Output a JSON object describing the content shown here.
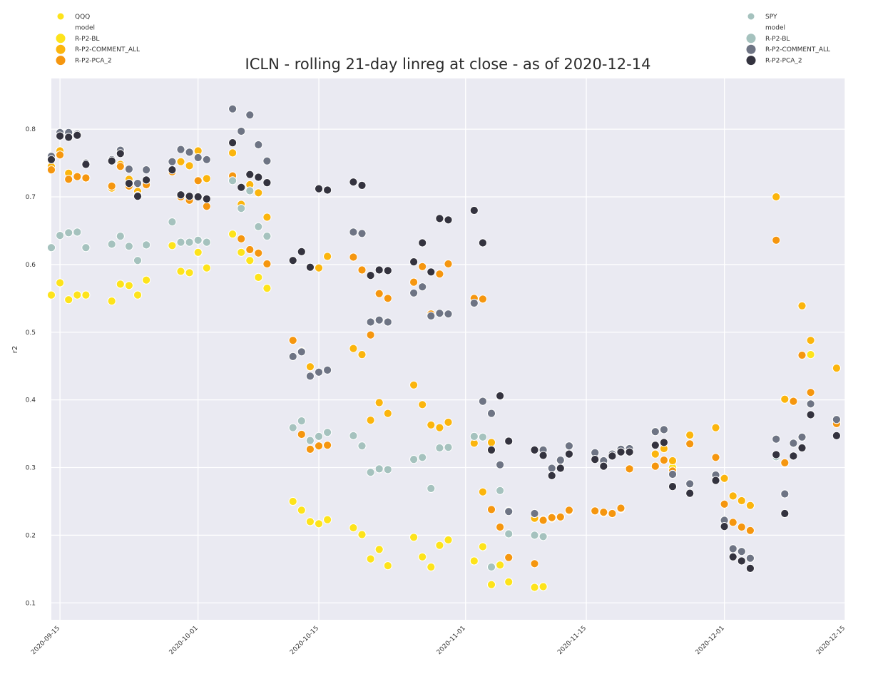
{
  "chart_data": {
    "type": "scatter",
    "title": "ICLN - rolling 21-day linreg at close - as of 2020-12-14",
    "xlabel": "",
    "ylabel": "r2",
    "x_range": [
      "2020-09-14",
      "2020-12-15"
    ],
    "ylim": [
      0.075,
      0.875
    ],
    "x_ticks": [
      "2020-09-15",
      "2020-10-01",
      "2020-10-15",
      "2020-11-01",
      "2020-11-15",
      "2020-12-01",
      "2020-12-15"
    ],
    "y_ticks": [
      0.1,
      0.2,
      0.3,
      0.4,
      0.5,
      0.6,
      0.7,
      0.8
    ],
    "grid": true,
    "legends": [
      {
        "placement": "top-left",
        "hue_title": "QQQ",
        "style_title": "model",
        "entries": [
          "R-P2-BL",
          "R-P2-COMMENT_ALL",
          "R-P2-PCA_2"
        ]
      },
      {
        "placement": "top-right",
        "hue_title": "SPY",
        "style_title": "model",
        "entries": [
          "R-P2-BL",
          "R-P2-COMMENT_ALL",
          "R-P2-PCA_2"
        ]
      }
    ],
    "colors": {
      "QQQ": {
        "R-P2-BL": "#fde31b",
        "R-P2-COMMENT_ALL": "#fbb50d",
        "R-P2-PCA_2": "#f5960f"
      },
      "SPY": {
        "R-P2-BL": "#a5c2be",
        "R-P2-COMMENT_ALL": "#6e7484",
        "R-P2-PCA_2": "#34333f"
      }
    },
    "dates": [
      "2020-09-14",
      "2020-09-15",
      "2020-09-16",
      "2020-09-17",
      "2020-09-18",
      "2020-09-21",
      "2020-09-22",
      "2020-09-23",
      "2020-09-24",
      "2020-09-25",
      "2020-09-28",
      "2020-09-29",
      "2020-09-30",
      "2020-10-01",
      "2020-10-02",
      "2020-10-05",
      "2020-10-06",
      "2020-10-07",
      "2020-10-08",
      "2020-10-09",
      "2020-10-12",
      "2020-10-13",
      "2020-10-14",
      "2020-10-15",
      "2020-10-16",
      "2020-10-19",
      "2020-10-20",
      "2020-10-21",
      "2020-10-22",
      "2020-10-23",
      "2020-10-26",
      "2020-10-27",
      "2020-10-28",
      "2020-10-29",
      "2020-10-30",
      "2020-11-02",
      "2020-11-03",
      "2020-11-04",
      "2020-11-05",
      "2020-11-06",
      "2020-11-09",
      "2020-11-10",
      "2020-11-11",
      "2020-11-12",
      "2020-11-13",
      "2020-11-16",
      "2020-11-17",
      "2020-11-18",
      "2020-11-19",
      "2020-11-20",
      "2020-11-23",
      "2020-11-24",
      "2020-11-25",
      "2020-11-27",
      "2020-11-30",
      "2020-12-01",
      "2020-12-02",
      "2020-12-03",
      "2020-12-04",
      "2020-12-07",
      "2020-12-08",
      "2020-12-09",
      "2020-12-10",
      "2020-12-11",
      "2020-12-14"
    ],
    "series": [
      {
        "name": "R-P2-BL",
        "hue": "QQQ",
        "values": [
          0.555,
          0.573,
          0.548,
          0.555,
          0.555,
          0.546,
          0.571,
          0.569,
          0.555,
          0.577,
          0.628,
          0.59,
          0.588,
          0.618,
          0.595,
          0.645,
          0.618,
          0.606,
          0.581,
          0.565,
          0.25,
          0.237,
          0.22,
          0.217,
          0.223,
          0.211,
          0.201,
          0.165,
          0.179,
          0.155,
          0.197,
          0.168,
          0.153,
          0.185,
          0.193,
          0.162,
          0.183,
          0.127,
          0.156,
          0.131,
          0.123,
          0.124,
          0.225,
          0.227,
          0.236,
          0.236,
          0.233,
          0.232,
          0.239,
          0.298,
          0.32,
          0.328,
          0.3,
          0.348,
          0.359,
          0.284,
          0.258,
          0.251,
          0.244,
          0.7,
          0.401,
          0.398,
          0.539,
          0.467,
          0.447
        ]
      },
      {
        "name": "R-P2-COMMENT_ALL",
        "hue": "QQQ",
        "values": [
          0.745,
          0.768,
          0.735,
          0.73,
          0.728,
          0.713,
          0.748,
          0.726,
          0.708,
          0.718,
          0.737,
          0.752,
          0.746,
          0.768,
          0.727,
          0.765,
          0.689,
          0.718,
          0.706,
          0.67,
          0.488,
          0.472,
          0.449,
          0.595,
          0.612,
          0.476,
          0.467,
          0.37,
          0.396,
          0.38,
          0.422,
          0.393,
          0.363,
          0.359,
          0.367,
          0.336,
          0.264,
          0.337,
          0.212,
          0.236,
          0.225,
          0.223,
          0.227,
          0.227,
          0.236,
          0.236,
          0.233,
          0.232,
          0.239,
          0.298,
          0.32,
          0.328,
          0.31,
          0.348,
          0.359,
          0.284,
          0.258,
          0.251,
          0.244,
          0.7,
          0.401,
          0.398,
          0.539,
          0.488,
          0.447
        ]
      },
      {
        "name": "R-P2-PCA_2",
        "hue": "QQQ",
        "values": [
          0.74,
          0.762,
          0.726,
          0.73,
          0.728,
          0.716,
          0.745,
          0.716,
          0.702,
          0.718,
          0.737,
          0.7,
          0.695,
          0.724,
          0.686,
          0.731,
          0.638,
          0.622,
          0.617,
          0.601,
          0.488,
          0.349,
          0.327,
          0.332,
          0.333,
          0.611,
          0.592,
          0.496,
          0.557,
          0.55,
          0.574,
          0.597,
          0.527,
          0.586,
          0.601,
          0.55,
          0.549,
          0.238,
          0.212,
          0.167,
          0.158,
          0.222,
          0.226,
          0.227,
          0.237,
          0.236,
          0.234,
          0.232,
          0.24,
          0.298,
          0.302,
          0.311,
          0.295,
          0.335,
          0.315,
          0.246,
          0.219,
          0.212,
          0.207,
          0.636,
          0.307,
          0.398,
          0.466,
          0.411,
          0.365
        ]
      },
      {
        "name": "R-P2-BL",
        "hue": "SPY",
        "values": [
          0.625,
          0.643,
          0.647,
          0.648,
          0.625,
          0.63,
          0.642,
          0.627,
          0.606,
          0.629,
          0.663,
          0.633,
          0.633,
          0.636,
          0.633,
          0.724,
          0.683,
          0.709,
          0.656,
          0.642,
          0.359,
          0.369,
          0.34,
          0.346,
          0.352,
          0.347,
          0.332,
          0.293,
          0.298,
          0.297,
          0.312,
          0.315,
          0.269,
          0.329,
          0.33,
          0.346,
          0.345,
          0.153,
          0.266,
          0.202,
          0.2,
          0.198,
          0.298,
          0.31,
          0.332,
          0.322,
          0.31,
          0.32,
          0.327,
          0.328,
          0.353,
          0.356,
          0.29,
          0.276,
          0.289,
          0.222,
          0.18,
          0.176,
          0.166,
          0.316,
          0.261,
          0.336,
          0.345,
          0.394,
          0.371
        ]
      },
      {
        "name": "R-P2-COMMENT_ALL",
        "hue": "SPY",
        "values": [
          0.76,
          0.795,
          0.795,
          0.793,
          0.75,
          0.755,
          0.769,
          0.741,
          0.72,
          0.74,
          0.752,
          0.77,
          0.766,
          0.758,
          0.755,
          0.83,
          0.797,
          0.821,
          0.777,
          0.753,
          0.464,
          0.471,
          0.435,
          0.441,
          0.444,
          0.648,
          0.646,
          0.515,
          0.518,
          0.515,
          0.558,
          0.567,
          0.524,
          0.528,
          0.527,
          0.543,
          0.398,
          0.38,
          0.304,
          0.235,
          0.232,
          0.326,
          0.299,
          0.311,
          0.332,
          0.322,
          0.31,
          0.32,
          0.327,
          0.328,
          0.353,
          0.356,
          0.29,
          0.276,
          0.289,
          0.222,
          0.18,
          0.176,
          0.166,
          0.342,
          0.261,
          0.336,
          0.345,
          0.394,
          0.371
        ]
      },
      {
        "name": "R-P2-PCA_2",
        "hue": "SPY",
        "values": [
          0.755,
          0.79,
          0.788,
          0.791,
          0.748,
          0.753,
          0.764,
          0.72,
          0.701,
          0.725,
          0.74,
          0.703,
          0.701,
          0.7,
          0.697,
          0.78,
          0.714,
          0.733,
          0.729,
          0.721,
          0.606,
          0.619,
          0.596,
          0.712,
          0.71,
          0.722,
          0.717,
          0.584,
          0.592,
          0.591,
          0.604,
          0.632,
          0.589,
          0.668,
          0.666,
          0.68,
          0.632,
          0.326,
          0.406,
          0.339,
          0.326,
          0.318,
          0.288,
          0.299,
          0.32,
          0.312,
          0.302,
          0.317,
          0.323,
          0.323,
          0.333,
          0.337,
          0.272,
          0.262,
          0.281,
          0.213,
          0.168,
          0.162,
          0.151,
          0.319,
          0.232,
          0.317,
          0.329,
          0.378,
          0.347
        ]
      }
    ]
  }
}
